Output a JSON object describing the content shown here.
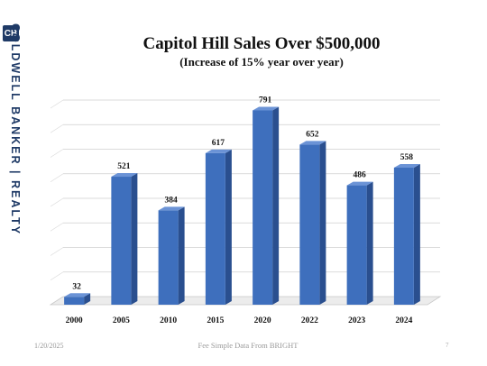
{
  "brand": {
    "logo_glyph": "CB",
    "name": "COLDWELL BANKER | REALTY",
    "color": "#1f3a66"
  },
  "chart_data": {
    "type": "bar",
    "title": "Capitol Hill Sales Over $500,000",
    "subtitle": "(Increase of 15% year over year)",
    "categories": [
      "2000",
      "2005",
      "2010",
      "2015",
      "2020",
      "2022",
      "2023",
      "2024"
    ],
    "values": [
      32,
      521,
      384,
      617,
      791,
      652,
      486,
      558
    ],
    "ylim": [
      0,
      800
    ],
    "grid": true,
    "bar_color": "#3e6fbd",
    "xlabel": "",
    "ylabel": ""
  },
  "footer": {
    "date": "1/20/2025",
    "source": "Fee Simple Data From BRIGHT",
    "page_number": "7"
  }
}
